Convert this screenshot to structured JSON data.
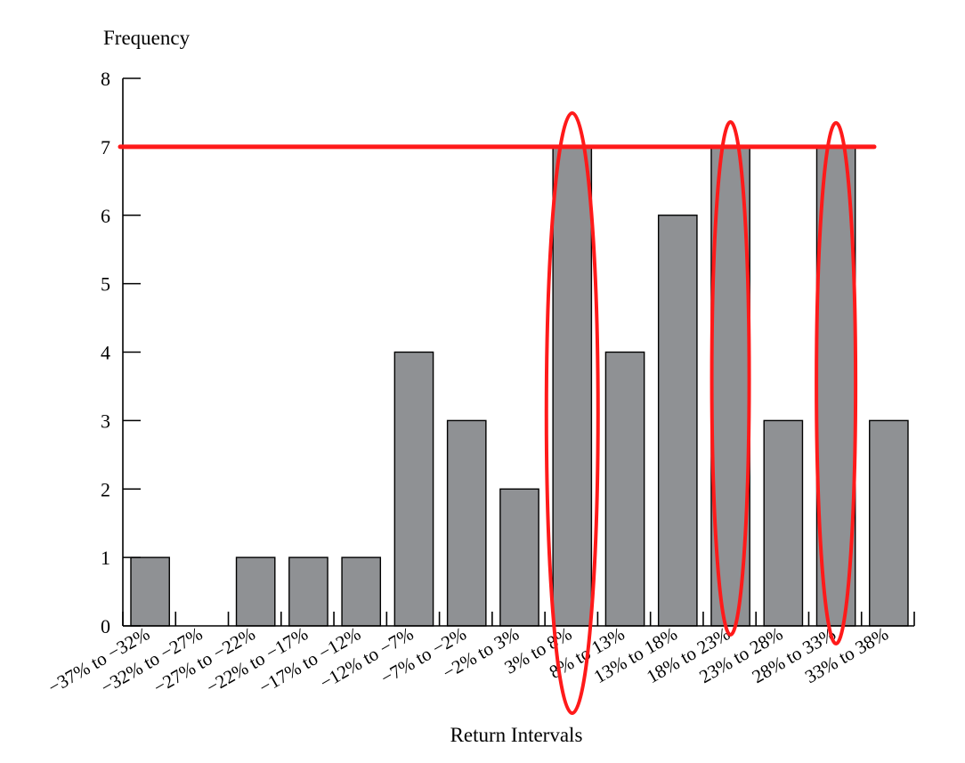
{
  "chart_data": {
    "type": "bar",
    "title": "",
    "ylabel": "Frequency",
    "xlabel": "Return Intervals",
    "ylim": [
      0,
      8
    ],
    "yticks": [
      0,
      1,
      2,
      3,
      4,
      5,
      6,
      7,
      8
    ],
    "categories": [
      "−37% to −32%",
      "−32% to −27%",
      "−27% to −22%",
      "−22% to −17%",
      "−17% to −12%",
      "−12% to −7%",
      "−7% to −2%",
      "−2% to 3%",
      "3% to 8%",
      "8% to 13%",
      "13% to 18%",
      "18% to 23%",
      "23% to 28%",
      "28% to 33%",
      "33% to 38%"
    ],
    "values": [
      1,
      0,
      1,
      1,
      1,
      4,
      3,
      2,
      7,
      4,
      6,
      7,
      3,
      7,
      3
    ],
    "grid": false,
    "annotations": {
      "color": "#ff1a1a",
      "horizontal_line_at": 7,
      "circled_categories": [
        "3% to 8%",
        "18% to 23%",
        "28% to 33%"
      ]
    }
  }
}
